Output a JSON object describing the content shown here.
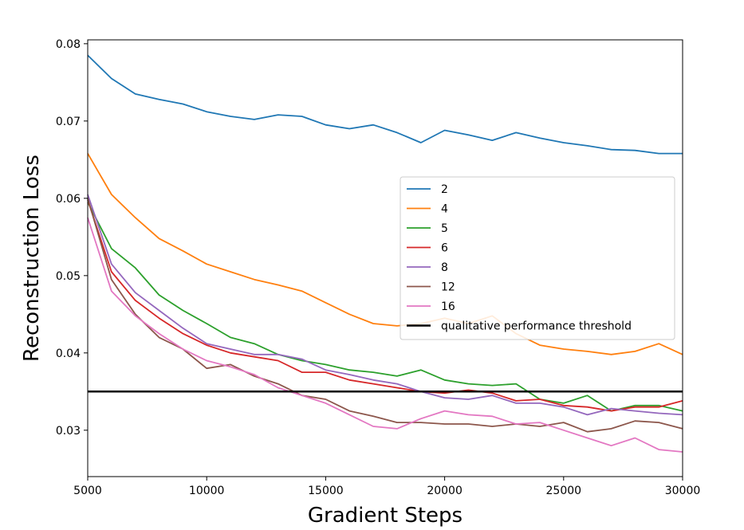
{
  "chart_data": {
    "type": "line",
    "title": "",
    "xlabel": "Gradient Steps",
    "ylabel": "Reconstruction Loss",
    "xlim": [
      5000,
      30000
    ],
    "ylim": [
      0.024,
      0.0805
    ],
    "x_ticks": [
      5000,
      10000,
      15000,
      20000,
      25000,
      30000
    ],
    "x_tick_labels": [
      "5000",
      "10000",
      "15000",
      "20000",
      "25000",
      "30000"
    ],
    "y_ticks": [
      0.03,
      0.04,
      0.05,
      0.06,
      0.07,
      0.08
    ],
    "y_tick_labels": [
      "0.03",
      "0.04",
      "0.05",
      "0.06",
      "0.07",
      "0.08"
    ],
    "grid": false,
    "legend_position": "right",
    "x": [
      5000,
      6000,
      7000,
      8000,
      9000,
      10000,
      11000,
      12000,
      13000,
      14000,
      15000,
      16000,
      17000,
      18000,
      19000,
      20000,
      21000,
      22000,
      23000,
      24000,
      25000,
      26000,
      27000,
      28000,
      29000,
      30000
    ],
    "series": [
      {
        "name": "2",
        "color": "#1f77b4",
        "values": [
          0.0785,
          0.0755,
          0.0735,
          0.0728,
          0.0722,
          0.0712,
          0.0706,
          0.0702,
          0.0708,
          0.0706,
          0.0695,
          0.069,
          0.0695,
          0.0685,
          0.0672,
          0.0688,
          0.0682,
          0.0675,
          0.0685,
          0.0678,
          0.0672,
          0.0668,
          0.0663,
          0.0662,
          0.0658,
          0.0658
        ]
      },
      {
        "name": "4",
        "color": "#ff7f0e",
        "values": [
          0.0658,
          0.0605,
          0.0575,
          0.0548,
          0.0532,
          0.0515,
          0.0505,
          0.0495,
          0.0488,
          0.048,
          0.0465,
          0.045,
          0.0438,
          0.0435,
          0.0438,
          0.0445,
          0.0438,
          0.0448,
          0.0425,
          0.041,
          0.0405,
          0.0402,
          0.0398,
          0.0402,
          0.0412,
          0.0398
        ]
      },
      {
        "name": "5",
        "color": "#2ca02c",
        "values": [
          0.0595,
          0.0535,
          0.051,
          0.0475,
          0.0455,
          0.0438,
          0.042,
          0.0412,
          0.0398,
          0.039,
          0.0385,
          0.0378,
          0.0375,
          0.037,
          0.0378,
          0.0365,
          0.036,
          0.0358,
          0.036,
          0.034,
          0.0335,
          0.0345,
          0.0325,
          0.0332,
          0.0332,
          0.0325
        ]
      },
      {
        "name": "6",
        "color": "#d62728",
        "values": [
          0.0598,
          0.0505,
          0.0468,
          0.0445,
          0.0425,
          0.041,
          0.04,
          0.0395,
          0.039,
          0.0375,
          0.0375,
          0.0365,
          0.036,
          0.0355,
          0.035,
          0.0348,
          0.0352,
          0.0348,
          0.0338,
          0.034,
          0.0332,
          0.033,
          0.0325,
          0.033,
          0.033,
          0.0338
        ]
      },
      {
        "name": "8",
        "color": "#9467bd",
        "values": [
          0.0605,
          0.0515,
          0.0478,
          0.0455,
          0.0432,
          0.0412,
          0.0405,
          0.0398,
          0.0398,
          0.0392,
          0.0378,
          0.0372,
          0.0365,
          0.036,
          0.035,
          0.0342,
          0.034,
          0.0345,
          0.0335,
          0.0335,
          0.033,
          0.032,
          0.0328,
          0.0325,
          0.0322,
          0.032
        ]
      },
      {
        "name": "12",
        "color": "#8c564b",
        "values": [
          0.06,
          0.0495,
          0.045,
          0.042,
          0.0405,
          0.038,
          0.0385,
          0.037,
          0.036,
          0.0345,
          0.034,
          0.0325,
          0.0318,
          0.031,
          0.031,
          0.0308,
          0.0308,
          0.0305,
          0.0308,
          0.0305,
          0.031,
          0.0298,
          0.0302,
          0.0312,
          0.031,
          0.0302
        ]
      },
      {
        "name": "16",
        "color": "#e377c2",
        "values": [
          0.0575,
          0.048,
          0.0448,
          0.0425,
          0.0405,
          0.039,
          0.0382,
          0.0372,
          0.0355,
          0.0345,
          0.0335,
          0.032,
          0.0305,
          0.0302,
          0.0315,
          0.0325,
          0.032,
          0.0318,
          0.0308,
          0.031,
          0.03,
          0.029,
          0.028,
          0.029,
          0.0275,
          0.0272
        ]
      },
      {
        "name": "qualitative performance threshold",
        "color": "#000000",
        "values": [
          0.035,
          0.035,
          0.035,
          0.035,
          0.035,
          0.035,
          0.035,
          0.035,
          0.035,
          0.035,
          0.035,
          0.035,
          0.035,
          0.035,
          0.035,
          0.035,
          0.035,
          0.035,
          0.035,
          0.035,
          0.035,
          0.035,
          0.035,
          0.035,
          0.035,
          0.035
        ]
      }
    ]
  }
}
